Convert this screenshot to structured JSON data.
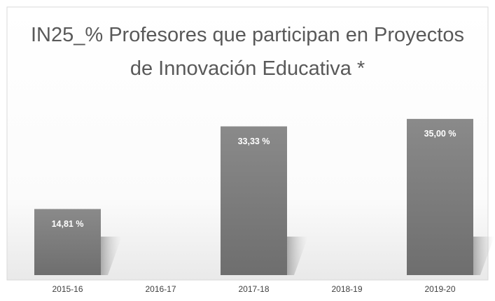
{
  "chart_data": {
    "type": "bar",
    "title": "IN25_% Profesores que participan en Proyectos de Innovación Educativa *",
    "categories": [
      "2015-16",
      "2016-17",
      "2017-18",
      "2018-19",
      "2019-20"
    ],
    "values": [
      14.81,
      null,
      33.33,
      null,
      35.0
    ],
    "value_labels": [
      "14,81 %",
      null,
      "33,33 %",
      null,
      "35,00 %"
    ],
    "color": "#7f7f7f",
    "ylim": [
      0,
      40
    ]
  }
}
